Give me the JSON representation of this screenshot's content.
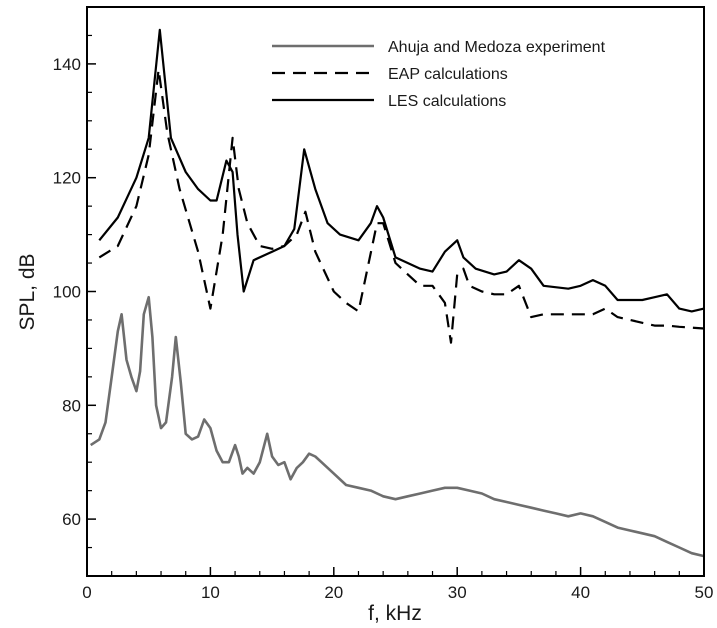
{
  "chart_data": {
    "type": "line",
    "xlabel": "f, kHz",
    "ylabel": "SPL, dB",
    "xlim": [
      0,
      50
    ],
    "ylim": [
      50,
      150
    ],
    "xticks": [
      0,
      10,
      20,
      30,
      40,
      50
    ],
    "yticks": [
      60,
      80,
      100,
      120,
      140
    ],
    "xtick_labels": [
      "0",
      "10",
      "20",
      "30",
      "40",
      "50"
    ],
    "ytick_labels": [
      "60",
      "80",
      "100",
      "120",
      "140"
    ],
    "grid": false,
    "legend_position": "top-right",
    "series": [
      {
        "name": "Ahuja and Medoza experiment",
        "color": "#6e6e6e",
        "dash": "solid",
        "x": [
          0.3,
          1.0,
          1.5,
          2.0,
          2.5,
          2.8,
          3.2,
          3.6,
          4.0,
          4.3,
          4.6,
          5.0,
          5.3,
          5.6,
          6.0,
          6.4,
          6.9,
          7.2,
          7.6,
          8.0,
          8.5,
          9.0,
          9.5,
          10.0,
          10.5,
          11.0,
          11.5,
          12.0,
          12.3,
          12.6,
          13.0,
          13.5,
          14.0,
          14.6,
          15.0,
          15.5,
          16.0,
          16.5,
          17.0,
          17.5,
          18.0,
          18.5,
          19.0,
          20.0,
          21.0,
          22.0,
          23.0,
          24.0,
          25.0,
          26.0,
          27.0,
          28.0,
          29.0,
          30.0,
          31.0,
          32.0,
          33.0,
          34.0,
          35.0,
          36.0,
          37.0,
          38.0,
          39.0,
          40.0,
          41.0,
          42.0,
          43.0,
          44.0,
          45.0,
          46.0,
          47.0,
          48.0,
          49.0,
          50.0
        ],
        "y": [
          73,
          74,
          77,
          85,
          93,
          96,
          88,
          85,
          82.5,
          86,
          96,
          99,
          92,
          80,
          76,
          77,
          85,
          92,
          84,
          75,
          74,
          74.5,
          77.5,
          76,
          72,
          70,
          70,
          73,
          71,
          68,
          69,
          68,
          70,
          75,
          71,
          69.5,
          70,
          67,
          69,
          70,
          71.5,
          71,
          70,
          68,
          66,
          65.5,
          65,
          64,
          63.5,
          64,
          64.5,
          65,
          65.5,
          65.5,
          65,
          64.5,
          63.5,
          63,
          62.5,
          62,
          61.5,
          61,
          60.5,
          61,
          60.5,
          59.5,
          58.5,
          58,
          57.5,
          57,
          56,
          55,
          54,
          53.5
        ]
      },
      {
        "name": "EAP calculations",
        "color": "#000000",
        "dash": "dashed",
        "x": [
          1.0,
          2.5,
          4.0,
          5.0,
          5.8,
          6.5,
          7.5,
          9.0,
          10.0,
          11.0,
          11.8,
          12.3,
          13.0,
          14.0,
          15.0,
          16.0,
          17.0,
          17.7,
          18.5,
          20.0,
          21.0,
          22.0,
          23.5,
          24.0,
          25.0,
          26.0,
          27.0,
          28.0,
          29.0,
          29.5,
          30.0,
          30.5,
          31.0,
          32.0,
          33.0,
          34.0,
          35.0,
          36.0,
          37.0,
          38.0,
          40.0,
          41.0,
          42.0,
          43.0,
          44.0,
          45.0,
          46.0,
          47.0,
          48.0,
          50.0
        ],
        "y": [
          106,
          108,
          115,
          124,
          139,
          128,
          118,
          107,
          97,
          110,
          127,
          118,
          112,
          108,
          107.5,
          108,
          110,
          114,
          107,
          100,
          98,
          96.5,
          112,
          112,
          105,
          103,
          101,
          101,
          98,
          91,
          103,
          104,
          101,
          100,
          99.5,
          99.5,
          101,
          95.5,
          96,
          96,
          96,
          96,
          97,
          95.5,
          95,
          94.5,
          94,
          94,
          93.8,
          93.5
        ]
      },
      {
        "name": "LES calculations",
        "color": "#000000",
        "dash": "solid",
        "x": [
          1.0,
          2.5,
          4.0,
          5.0,
          5.9,
          6.8,
          8.0,
          9.0,
          10.0,
          10.5,
          11.3,
          11.8,
          12.2,
          12.7,
          13.5,
          15.0,
          16.0,
          16.8,
          17.6,
          18.5,
          19.5,
          20.5,
          22.0,
          23.0,
          23.5,
          24.0,
          25.0,
          27.0,
          28.0,
          29.0,
          30.0,
          30.5,
          31.5,
          33.0,
          34.0,
          35.0,
          36.0,
          37.0,
          39.0,
          40.0,
          41.0,
          42.0,
          43.0,
          45.0,
          46.0,
          47.0,
          48.0,
          49.0,
          50.0
        ],
        "y": [
          109,
          113,
          120,
          127,
          146,
          127,
          121,
          118,
          116,
          116,
          123,
          121,
          110,
          100,
          105.5,
          107,
          108,
          111,
          125,
          118,
          112,
          110,
          109,
          112,
          115,
          113,
          106,
          104,
          103.5,
          107,
          109,
          106,
          104,
          103,
          103.5,
          105.5,
          104,
          101,
          100.5,
          101,
          102,
          101,
          98.5,
          98.5,
          99,
          99.5,
          97,
          96.5,
          97
        ]
      }
    ]
  }
}
